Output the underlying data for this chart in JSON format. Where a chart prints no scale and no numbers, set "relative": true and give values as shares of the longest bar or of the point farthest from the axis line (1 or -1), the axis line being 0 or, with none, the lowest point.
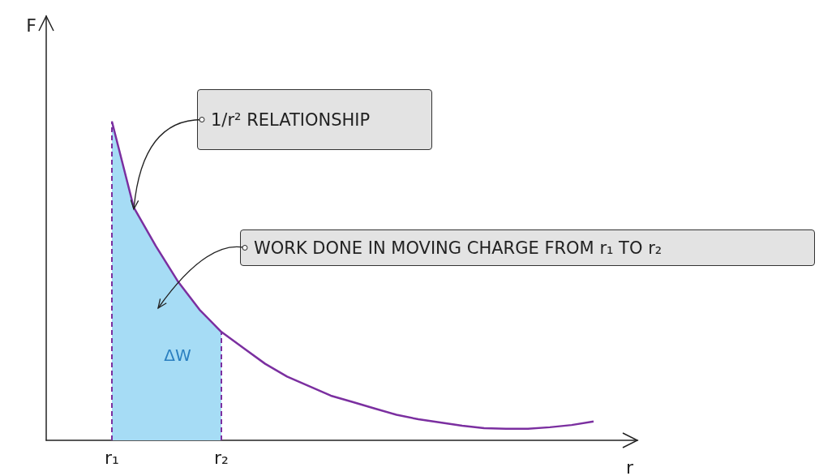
{
  "chart_data": {
    "type": "line",
    "xlabel": "r",
    "ylabel": "F",
    "relative": true,
    "marker": "none",
    "categories": [
      null,
      null,
      null,
      "r₁",
      null,
      null,
      null,
      null,
      "r₂",
      null,
      null,
      null,
      null,
      null,
      null,
      null,
      null,
      null,
      null,
      null,
      null,
      null,
      null,
      null,
      null,
      null,
      null,
      null
    ],
    "series": [
      {
        "color": "#7b2fa0",
        "values": [
          null,
          null,
          null,
          1.0,
          0.73,
          0.61,
          0.5,
          0.41,
          0.34,
          0.29,
          0.24,
          0.2,
          0.17,
          0.14,
          0.12,
          0.1,
          0.08,
          0.066,
          0.056,
          0.046,
          0.038,
          0.036,
          0.036,
          0.041,
          0.048,
          0.059,
          null,
          null
        ]
      },
      {
        "type": "area",
        "name": "ΔW",
        "color": "#a6dcf5",
        "values": [
          null,
          null,
          null,
          1.0,
          0.73,
          0.61,
          0.5,
          0.41,
          0.34,
          null,
          null,
          null,
          null,
          null,
          null,
          null,
          null,
          null,
          null,
          null,
          null,
          null,
          null,
          null,
          null,
          null,
          null,
          null
        ]
      }
    ],
    "annotations": [
      "1/r² RELATIONSHIP",
      "WORK DONE IN MOVING CHARGE FROM r₁ TO r₂"
    ]
  }
}
